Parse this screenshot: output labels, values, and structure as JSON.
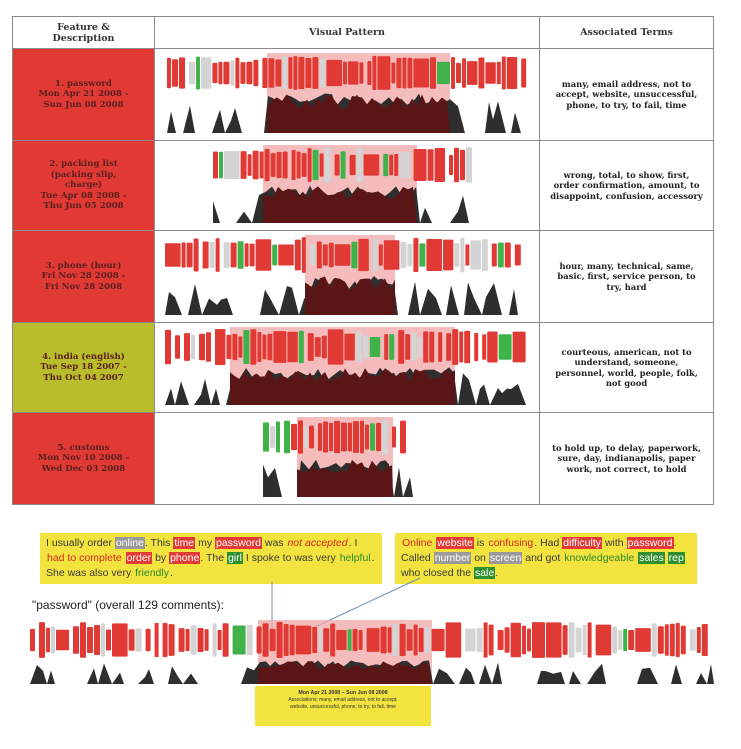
{
  "headers": {
    "feature": "Feature & Description",
    "visual": "Visual Pattern",
    "terms": "Associated Terms"
  },
  "rows": [
    {
      "lines": [
        "1. password",
        "Mon Apr 21 2008 -",
        "Sun Jun 08 2008"
      ],
      "color": "#e13a35",
      "terms": "many, email address, not to accept, website, unsuccessful, phone, to try, to fail, time"
    },
    {
      "lines": [
        "2. packing list",
        "(packing slip,",
        "charge)",
        "Tue Apr 08 2008 -",
        "Thu Jun 05 2008"
      ],
      "color": "#e13a35",
      "terms": "wrong, total, to show, first, order confirmation, amount, to disappoint, confusion, accessory"
    },
    {
      "lines": [
        "3. phone (hour)",
        "Fri Nov 28 2008 -",
        "Fri Nov 28 2008"
      ],
      "color": "#e13a35",
      "terms": "hour, many, technical, same, basic, first, service person, to try, hard"
    },
    {
      "lines": [
        "4. india (english)",
        "Tue Sep 18 2007 -",
        "Thu Oct 04 2007"
      ],
      "color": "#b9bc2b",
      "terms": "courteous, american, not to understand, someone, personnel, world, people, folk, not good"
    },
    {
      "lines": [
        "5. customs",
        "Mon Nov 10 2008 -",
        "Wed Dec 03 2008"
      ],
      "color": "#e13a35",
      "terms": "to hold up, to delay, paperwork, sure, day, indianapolis, paper work, not correct, to hold"
    }
  ],
  "quote_left": [
    {
      "t": "I usually order "
    },
    {
      "t": "online",
      "c": "gray"
    },
    {
      "t": ". This "
    },
    {
      "t": "time",
      "c": "red"
    },
    {
      "t": " my "
    },
    {
      "t": "password",
      "c": "red"
    },
    {
      "t": " was "
    },
    {
      "t": "not accepted",
      "c": "redtext",
      "i": true
    },
    {
      "t": ". I "
    },
    {
      "t": "had to complete",
      "c": "redtext"
    },
    {
      "t": " "
    },
    {
      "t": "order",
      "c": "red"
    },
    {
      "t": " by "
    },
    {
      "t": "phone",
      "c": "red"
    },
    {
      "t": ". The "
    },
    {
      "t": "girl",
      "c": "green"
    },
    {
      "t": " I spoke to was very "
    },
    {
      "t": "helpful",
      "c": "greentext"
    },
    {
      "t": ". She was also very "
    },
    {
      "t": "friendly",
      "c": "greentext"
    },
    {
      "t": "."
    }
  ],
  "quote_right": [
    {
      "t": "Online",
      "c": "redtext"
    },
    {
      "t": " "
    },
    {
      "t": "website",
      "c": "red"
    },
    {
      "t": " is "
    },
    {
      "t": "confusing",
      "c": "redtext"
    },
    {
      "t": ". Had "
    },
    {
      "t": "difficulty",
      "c": "red"
    },
    {
      "t": " with "
    },
    {
      "t": "password",
      "c": "red"
    },
    {
      "t": ". Called "
    },
    {
      "t": "number",
      "c": "gray"
    },
    {
      "t": " on "
    },
    {
      "t": "screen",
      "c": "gray"
    },
    {
      "t": " and got "
    },
    {
      "t": "knowledgeable",
      "c": "greentext"
    },
    {
      "t": " "
    },
    {
      "t": "sales",
      "c": "green"
    },
    {
      "t": " "
    },
    {
      "t": "rep",
      "c": "green"
    },
    {
      "t": " who closed the "
    },
    {
      "t": "sale",
      "c": "green"
    },
    {
      "t": "."
    }
  ],
  "bottom": {
    "label": "\"password\" (overall 129 comments):",
    "date_line": "Mon Apr 21  2008 – Sun Jun 08 2008",
    "assoc_line1": "Associations: many, email address, not to accept,",
    "assoc_line2": "website, unsuccessful, phone, to try, to fail, time"
  },
  "colors": {
    "negative": "#e13a35",
    "positive": "#3fb24a",
    "neutral": "#d4d4d4",
    "highlight_band": "#f0a6a6",
    "density_highlight": "#5a1616",
    "density": "#2e2e2e",
    "quote_background": "#f2e33f"
  }
}
